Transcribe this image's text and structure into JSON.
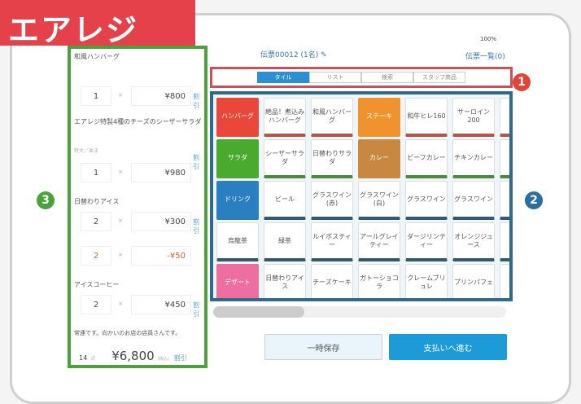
{
  "logo": "エアレジ",
  "header": {
    "status": "100%",
    "title": "伝票00012 (1名)",
    "list_link": "伝票一覧(0)"
  },
  "tabs": [
    "タイル",
    "リスト",
    "検索",
    "スタッフ商品"
  ],
  "annotations": [
    "1",
    "2",
    "3"
  ],
  "tiles": [
    [
      "ハンバーグ",
      "絶品！煮込みハンバーグ",
      "和風ハンバーグ",
      "ステーキ",
      "和牛ヒレ160",
      "サーロイン200"
    ],
    [
      "サラダ",
      "シーザーサラダ",
      "日替わりサラダ",
      "カレー",
      "ビーフカレー",
      "チキンカレー"
    ],
    [
      "ドリンク",
      "ビール",
      "グラスワイン(赤)",
      "グラスワイン(白)",
      "グラスワイン",
      "グラスワイン"
    ],
    [
      "烏龍茶",
      "緑茶",
      "ルイボスティー",
      "アールグレイティー",
      "ダージリンティー",
      "オレンジジュース"
    ],
    [
      "デザート",
      "日替わりアイス",
      "チーズケーキ",
      "ガトーショコラ",
      "クレームブリュレ",
      "プリンパフェ"
    ]
  ],
  "colors": {
    "hamburg": "#e8473a",
    "salad": "#4aaa2e",
    "drink": "#2a7fc0",
    "dessert": "#ec6fa0",
    "steak": "#f0922e",
    "curry": "#c88840",
    "accent": "#1d9ad8"
  },
  "order": {
    "items": [
      {
        "name": "和風ハンバーグ",
        "qty": "1",
        "price": "¥800"
      },
      {
        "name": "エアレジ特製4種のチーズのシーザーサラダ",
        "note": "特大／並ま",
        "qty": "1",
        "price": "¥980"
      },
      {
        "name": "日替わりアイス",
        "qty": "2",
        "price": "¥300"
      },
      {
        "name": "",
        "qty": "2",
        "price": "-¥50"
      },
      {
        "name": "アイスコーヒー",
        "qty": "2",
        "price": "¥450"
      }
    ],
    "x": "×",
    "discount": "割引",
    "memo": "常連です。向かいのお店の店員さんです。",
    "total_count": "14",
    "count_unit": "点",
    "total": "¥6,800",
    "tax": "(税込)"
  },
  "buttons": {
    "save": "一時保存",
    "pay": "支払いへ進む"
  }
}
